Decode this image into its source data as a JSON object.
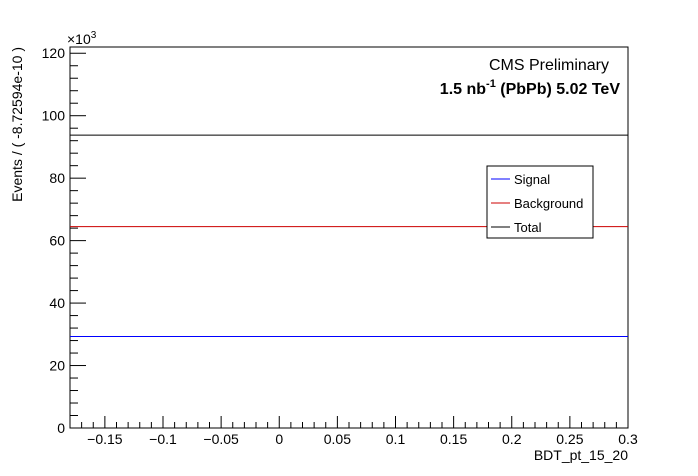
{
  "chart_data": {
    "type": "line",
    "xlabel": "BDT_pt_15_20",
    "ylabel": "Events / ( -8.72594e-10 )",
    "y_multiplier": "×10",
    "y_multiplier_exp": "3",
    "xlim": [
      -0.18,
      0.3
    ],
    "ylim": [
      0,
      122
    ],
    "x_ticks": [
      -0.15,
      -0.1,
      -0.05,
      0,
      0.05,
      0.1,
      0.15,
      0.2,
      0.25,
      0.3
    ],
    "x_tick_labels": [
      "−0.15",
      "−0.1",
      "−0.05",
      "0",
      "0.05",
      "0.1",
      "0.15",
      "0.2",
      "0.25",
      "0.3"
    ],
    "y_ticks": [
      0,
      20,
      40,
      60,
      80,
      100,
      120
    ],
    "y_tick_labels": [
      "0",
      "20",
      "40",
      "60",
      "80",
      "100",
      "120"
    ],
    "series": [
      {
        "name": "Signal",
        "color": "#0000ff",
        "x": [
          -0.18,
          0.3
        ],
        "values": [
          29.3,
          29.3
        ]
      },
      {
        "name": "Background",
        "color": "#cc0000",
        "x": [
          -0.18,
          0.3
        ],
        "values": [
          64.5,
          64.5
        ]
      },
      {
        "name": "Total",
        "color": "#000000",
        "x": [
          -0.18,
          0.3
        ],
        "values": [
          93.8,
          93.8
        ]
      }
    ],
    "legend_position": "right",
    "annotations": {
      "line1": "CMS Preliminary",
      "line2_prefix": "1.5 nb",
      "line2_sup": "-1",
      "line2_suffix": " (PbPb) 5.02 TeV"
    }
  }
}
